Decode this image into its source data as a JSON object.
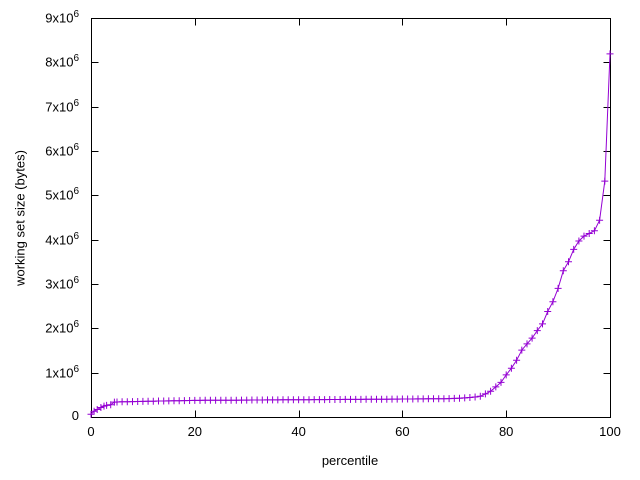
{
  "figure": {
    "background": "#ffffff",
    "axis_color": "#000000",
    "text_color": "#000000"
  },
  "chart_data": {
    "type": "line",
    "title": "",
    "xlabel": "percentile",
    "ylabel": "working set size (bytes)",
    "xlim": [
      0,
      100
    ],
    "ylim": [
      0,
      9000000
    ],
    "grid": false,
    "legend": "none",
    "x_ticks": [
      0,
      20,
      40,
      60,
      80,
      100
    ],
    "x_tick_labels": [
      "0",
      "20",
      "40",
      "60",
      "80",
      "100"
    ],
    "y_ticks": [
      0,
      1000000,
      2000000,
      3000000,
      4000000,
      5000000,
      6000000,
      7000000,
      8000000,
      9000000
    ],
    "y_tick_labels": [
      "0",
      "1x10^6",
      "2x10^6",
      "3x10^6",
      "4x10^6",
      "5x10^6",
      "6x10^6",
      "7x10^6",
      "8x10^6",
      "9x10^6"
    ],
    "series": [
      {
        "name": "working set size",
        "color": "#9400d3",
        "marker": "plus",
        "marker_size": 7,
        "points": [
          [
            0,
            60000
          ],
          [
            0.6,
            130000
          ],
          [
            1.2,
            170000
          ],
          [
            1.9,
            215000
          ],
          [
            2.5,
            245000
          ],
          [
            3,
            262000
          ],
          [
            3.8,
            278000
          ],
          [
            4.5,
            335000
          ],
          [
            5,
            338000
          ],
          [
            6,
            342000
          ],
          [
            7,
            344000
          ],
          [
            8,
            347000
          ],
          [
            9,
            350000
          ],
          [
            10,
            352000
          ],
          [
            11,
            355000
          ],
          [
            12,
            357000
          ],
          [
            13,
            360000
          ],
          [
            14,
            362000
          ],
          [
            15,
            364000
          ],
          [
            16,
            366000
          ],
          [
            17,
            368000
          ],
          [
            18,
            370000
          ],
          [
            19,
            372000
          ],
          [
            20,
            374000
          ],
          [
            21,
            375000
          ],
          [
            22,
            376000
          ],
          [
            23,
            377000
          ],
          [
            24,
            377000
          ],
          [
            25,
            378000
          ],
          [
            26,
            379000
          ],
          [
            27,
            380000
          ],
          [
            28,
            380000
          ],
          [
            29,
            381000
          ],
          [
            30,
            382000
          ],
          [
            31,
            383000
          ],
          [
            32,
            383000
          ],
          [
            33,
            384000
          ],
          [
            34,
            385000
          ],
          [
            35,
            386000
          ],
          [
            36,
            386000
          ],
          [
            37,
            387000
          ],
          [
            38,
            388000
          ],
          [
            39,
            389000
          ],
          [
            40,
            389000
          ],
          [
            41,
            390000
          ],
          [
            42,
            391000
          ],
          [
            43,
            392000
          ],
          [
            44,
            392000
          ],
          [
            45,
            393000
          ],
          [
            46,
            394000
          ],
          [
            47,
            395000
          ],
          [
            48,
            395000
          ],
          [
            49,
            396000
          ],
          [
            50,
            397000
          ],
          [
            51,
            398000
          ],
          [
            52,
            398000
          ],
          [
            53,
            399000
          ],
          [
            54,
            400000
          ],
          [
            55,
            401000
          ],
          [
            56,
            401000
          ],
          [
            57,
            402000
          ],
          [
            58,
            403000
          ],
          [
            59,
            404000
          ],
          [
            60,
            405000
          ],
          [
            61,
            406000
          ],
          [
            62,
            407000
          ],
          [
            63,
            408000
          ],
          [
            64,
            409000
          ],
          [
            65,
            410000
          ],
          [
            66,
            411000
          ],
          [
            67,
            412000
          ],
          [
            68,
            413000
          ],
          [
            69,
            416000
          ],
          [
            70,
            420000
          ],
          [
            71,
            425000
          ],
          [
            72,
            431000
          ],
          [
            73,
            440000
          ],
          [
            74,
            452000
          ],
          [
            75,
            470000
          ],
          [
            76,
            520000
          ],
          [
            77,
            580000
          ],
          [
            78,
            680000
          ],
          [
            79,
            780000
          ],
          [
            80,
            950000
          ],
          [
            81,
            1100000
          ],
          [
            82,
            1280000
          ],
          [
            83,
            1510000
          ],
          [
            84,
            1650000
          ],
          [
            85,
            1780000
          ],
          [
            86,
            1950000
          ],
          [
            87,
            2100000
          ],
          [
            88,
            2380000
          ],
          [
            89,
            2600000
          ],
          [
            90,
            2900000
          ],
          [
            91,
            3300000
          ],
          [
            92,
            3500000
          ],
          [
            93,
            3780000
          ],
          [
            94,
            3970000
          ],
          [
            95,
            4080000
          ],
          [
            96,
            4140000
          ],
          [
            97,
            4200000
          ],
          [
            98,
            4440000
          ],
          [
            99,
            5320000
          ],
          [
            100,
            8190000
          ]
        ]
      }
    ]
  }
}
